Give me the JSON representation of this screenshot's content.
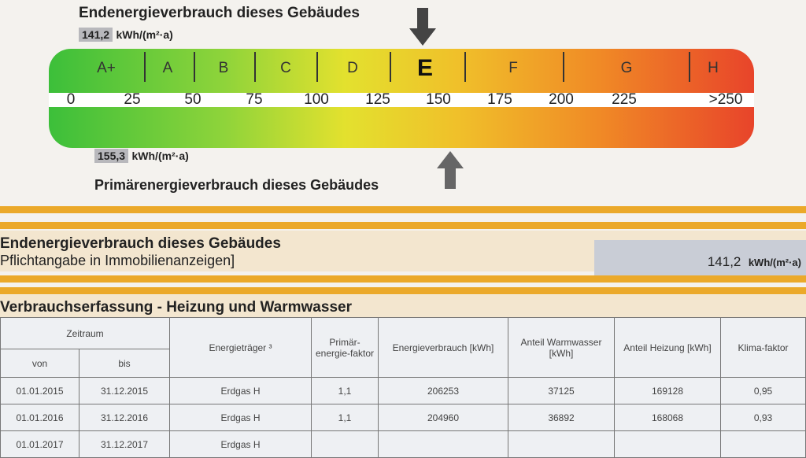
{
  "scale": {
    "end_title": "Endenergieverbrauch dieses Gebäudes",
    "end_value": "141,2",
    "end_unit": "kWh/(m²·a)",
    "primary_title": "Primärenergieverbrauch dieses Gebäudes",
    "primary_value": "155,3",
    "primary_unit": "kWh/(m²·a)",
    "classes": [
      "A+",
      "A",
      "B",
      "C",
      "D",
      "E",
      "F",
      "G",
      "H"
    ],
    "highlighted_class": "E",
    "ticks": [
      "0",
      "25",
      "50",
      "75",
      "100",
      "125",
      "150",
      "175",
      "200",
      "225",
      ">250"
    ]
  },
  "summary": {
    "title": "Endenergieverbrauch dieses Gebäudes",
    "subtitle": "Pflichtangabe in Immobilienanzeigen]",
    "value": "141,2",
    "unit": "kWh/(m²·a)"
  },
  "section": {
    "title": "Verbrauchserfassung - Heizung und Warmwasser"
  },
  "table": {
    "headers": {
      "period": "Zeitraum",
      "from": "von",
      "to": "bis",
      "carrier": "Energieträger ³",
      "factor": "Primär-energie-faktor",
      "consumption": "Energieverbrauch [kWh]",
      "water": "Anteil Warmwasser [kWh]",
      "heating": "Anteil Heizung [kWh]",
      "climate": "Klima-faktor"
    },
    "rows": [
      [
        "01.01.2015",
        "31.12.2015",
        "Erdgas H",
        "1,1",
        "206253",
        "37125",
        "169128",
        "0,95"
      ],
      [
        "01.01.2016",
        "31.12.2016",
        "Erdgas H",
        "1,1",
        "204960",
        "36892",
        "168068",
        "0,93"
      ],
      [
        "01.01.2017",
        "31.12.2017",
        "Erdgas H",
        "",
        "",
        "",
        "",
        ""
      ]
    ]
  }
}
